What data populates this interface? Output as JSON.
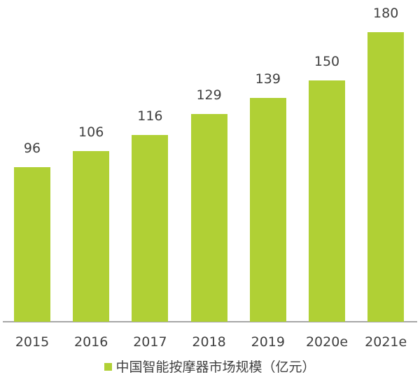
{
  "chart_data": {
    "type": "bar",
    "title": "",
    "xlabel": "",
    "ylabel": "",
    "categories": [
      "2015",
      "2016",
      "2017",
      "2018",
      "2019",
      "2020e",
      "2021e"
    ],
    "series": [
      {
        "name": "中国智能按摩器市场规模（亿元）",
        "values": [
          96,
          106,
          116,
          129,
          139,
          150,
          180
        ],
        "color": "#b0d035"
      }
    ],
    "value_labels": [
      "96",
      "106",
      "116",
      "129",
      "139",
      "150",
      "180"
    ],
    "ylim": [
      0,
      180
    ],
    "grid": false,
    "legend_position": "bottom"
  },
  "legend": {
    "label": "中国智能按摩器市场规模（亿元）"
  }
}
